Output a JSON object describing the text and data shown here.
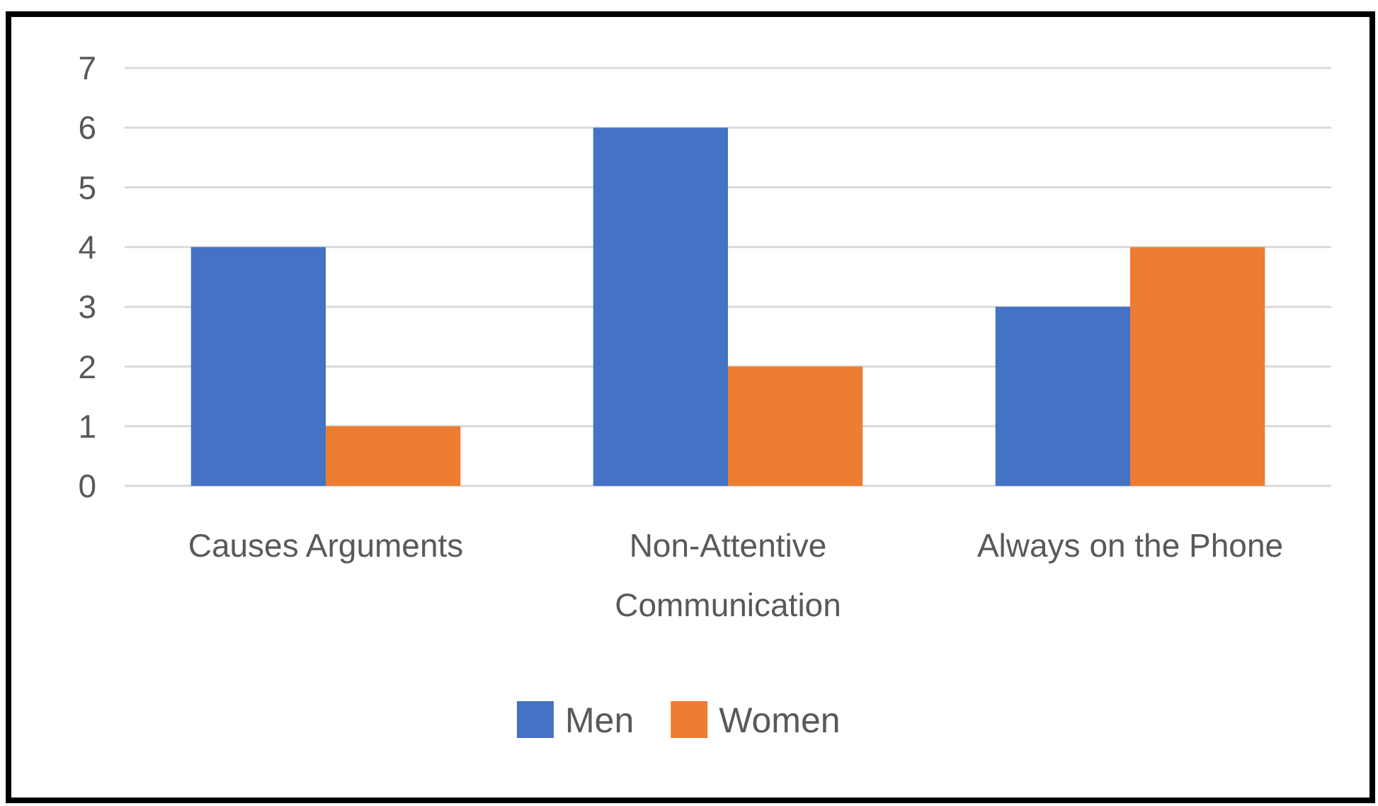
{
  "chart_data": {
    "type": "bar",
    "categories": [
      "Causes Arguments",
      "Non-Attentive Communication",
      "Always on the Phone"
    ],
    "series": [
      {
        "name": "Men",
        "color": "#4472c4",
        "values": [
          4,
          6,
          3
        ]
      },
      {
        "name": "Women",
        "color": "#ed7d31",
        "values": [
          1,
          2,
          4
        ]
      }
    ],
    "ylim": [
      0,
      7
    ],
    "yticks": [
      0,
      1,
      2,
      3,
      4,
      5,
      6,
      7
    ],
    "grid": "y",
    "legend": "bottom"
  }
}
